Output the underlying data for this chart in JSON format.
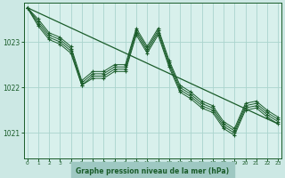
{
  "bg_color": "#cce8e4",
  "plot_bg": "#d8f0ec",
  "grid_color": "#aad4ce",
  "line_color": "#1a5c2a",
  "marker_color": "#1a5c2a",
  "xlabel": "Graphe pression niveau de la mer (hPa)",
  "xlabel_color": "#1a5c2a",
  "xlabel_bg": "#9ec8c2",
  "tick_color": "#1a5c2a",
  "yticks": [
    1021,
    1022,
    1023
  ],
  "ylim": [
    1020.45,
    1023.85
  ],
  "xlim": [
    -0.3,
    23.3
  ],
  "xticks": [
    0,
    1,
    2,
    3,
    4,
    5,
    6,
    7,
    8,
    9,
    10,
    11,
    12,
    13,
    14,
    15,
    16,
    17,
    18,
    19,
    20,
    21,
    22,
    23
  ],
  "series": [
    [
      1023.75,
      1023.5,
      1023.2,
      1023.1,
      1022.9,
      1022.15,
      1022.35,
      1022.35,
      1022.5,
      1022.5,
      1023.3,
      1022.9,
      1023.3,
      1022.6,
      1022.05,
      1021.9,
      1021.7,
      1021.6,
      1021.25,
      1021.1,
      1021.65,
      1021.7,
      1021.5,
      1021.35
    ],
    [
      1023.75,
      1023.45,
      1023.15,
      1023.05,
      1022.85,
      1022.1,
      1022.3,
      1022.3,
      1022.45,
      1022.45,
      1023.25,
      1022.85,
      1023.25,
      1022.55,
      1022.0,
      1021.85,
      1021.65,
      1021.55,
      1021.2,
      1021.05,
      1021.6,
      1021.65,
      1021.45,
      1021.3
    ],
    [
      1023.75,
      1023.4,
      1023.1,
      1023.0,
      1022.8,
      1022.05,
      1022.25,
      1022.25,
      1022.4,
      1022.4,
      1023.2,
      1022.8,
      1023.2,
      1022.5,
      1021.95,
      1021.8,
      1021.6,
      1021.5,
      1021.15,
      1021.0,
      1021.55,
      1021.6,
      1021.4,
      1021.25
    ],
    [
      1023.75,
      1023.35,
      1023.05,
      1022.95,
      1022.75,
      1022.05,
      1022.2,
      1022.2,
      1022.35,
      1022.35,
      1023.15,
      1022.75,
      1023.15,
      1022.45,
      1021.9,
      1021.75,
      1021.55,
      1021.45,
      1021.1,
      1020.95,
      1021.5,
      1021.55,
      1021.35,
      1021.2
    ]
  ],
  "straight_line_x": [
    0,
    23
  ],
  "straight_line_y": [
    1023.75,
    1021.2
  ]
}
